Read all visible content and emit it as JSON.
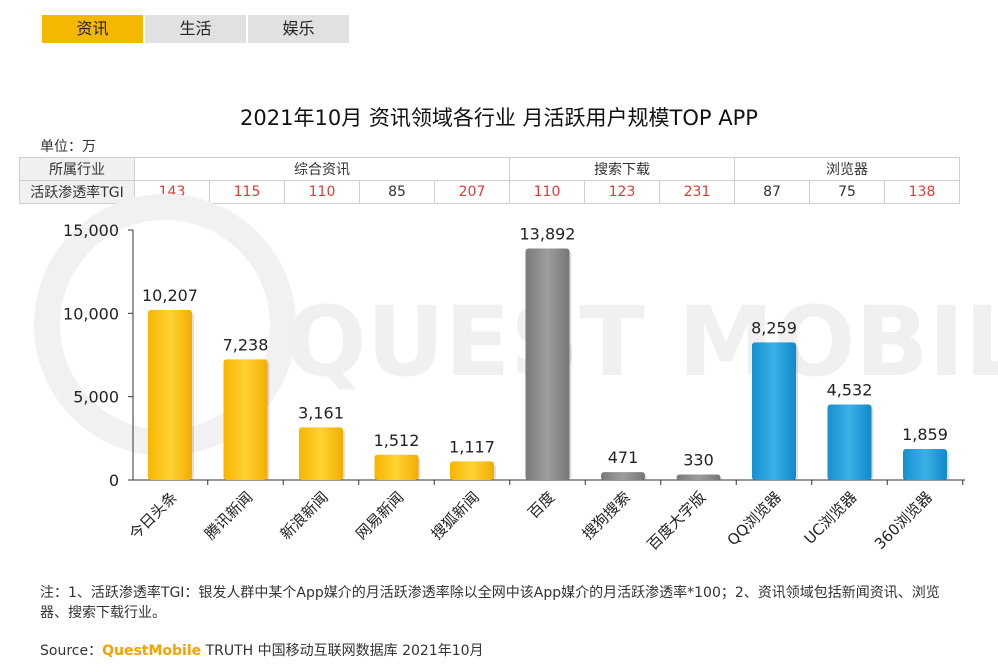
{
  "tabs": [
    {
      "label": "资讯",
      "active": true
    },
    {
      "label": "生活",
      "active": false
    },
    {
      "label": "娱乐",
      "active": false
    }
  ],
  "unit_label": "单位：万",
  "table": {
    "row1_header": "所属行业",
    "row2_header": "活跃渗透率TGI",
    "groups": [
      {
        "name": "综合资讯",
        "span": 5
      },
      {
        "name": "搜索下载",
        "span": 3
      },
      {
        "name": "浏览器",
        "span": 3
      }
    ],
    "tgi": [
      "143",
      "115",
      "110",
      "85",
      "207",
      "110",
      "123",
      "231",
      "87",
      "75",
      "138"
    ]
  },
  "chart_data": {
    "type": "bar",
    "title": "2021年10月 资讯领域各行业 月活跃用户规模TOP APP",
    "categories": [
      "今日头条",
      "腾讯新闻",
      "新浪新闻",
      "网易新闻",
      "搜狐新闻",
      "百度",
      "搜狗搜索",
      "百度大字版",
      "QQ浏览器",
      "UC浏览器",
      "360浏览器"
    ],
    "values": [
      10207,
      7238,
      3161,
      1512,
      1117,
      13892,
      471,
      330,
      8259,
      4532,
      1859
    ],
    "value_labels": [
      "10,207",
      "7,238",
      "3,161",
      "1,512",
      "1,117",
      "13,892",
      "471",
      "330",
      "8,259",
      "4,532",
      "1,859"
    ],
    "group_index": [
      0,
      0,
      0,
      0,
      0,
      1,
      1,
      1,
      2,
      2,
      2
    ],
    "group_colors": [
      "#fdc40f",
      "#8c8c8c",
      "#1e9bd7"
    ],
    "ylim": [
      0,
      15000
    ],
    "yticks": [
      0,
      5000,
      10000,
      15000
    ],
    "ytick_labels": [
      "0",
      "5,000",
      "10,000",
      "15,000"
    ],
    "xlabel": "",
    "ylabel": ""
  },
  "watermark": "QUEST MOBILE",
  "note": "注：1、活跃渗透率TGI：银发人群中某个App媒介的月活跃渗透率除以全网中该App媒介的月活跃渗透率*100；2、资讯领域包括新闻资讯、浏览器、搜索下载行业。",
  "source": {
    "prefix": "Source：",
    "brand": "QuestMobile",
    "rest": " TRUTH 中国移动互联网数据库 2021年10月"
  }
}
